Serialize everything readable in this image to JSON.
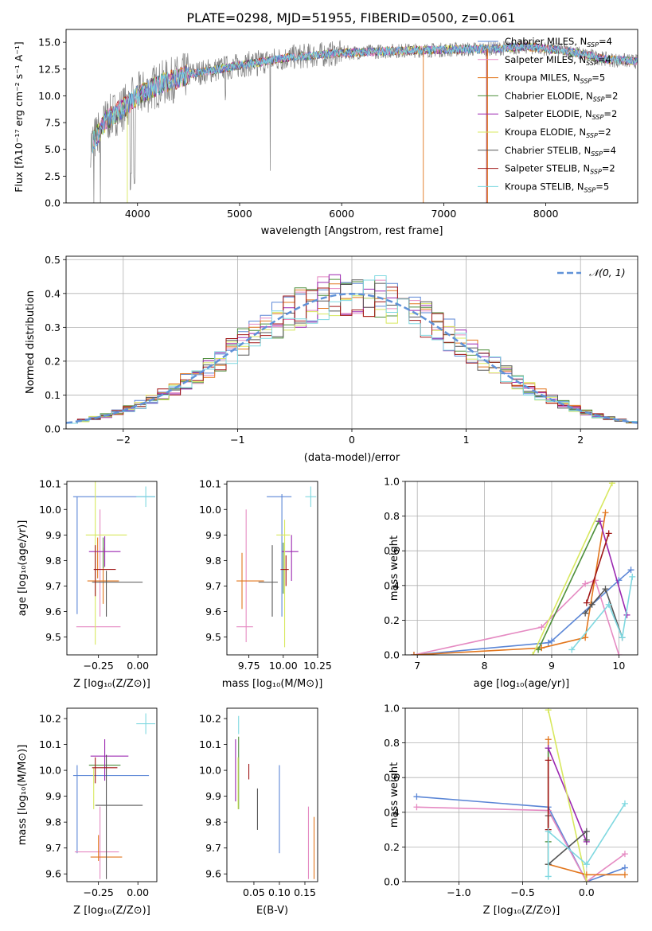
{
  "title": "PLATE=0298, MJD=51955, FIBERID=0500, z=0.061",
  "colors": {
    "Chabrier MILES": "#5b86d6",
    "Salpeter MILES": "#e58ac2",
    "Kroupa MILES": "#e2761d",
    "Chabrier ELODIE": "#4e8f3c",
    "Salpeter ELODIE": "#9b27b0",
    "Kroupa ELODIE": "#d8e85f",
    "Chabrier STELIB": "#555555",
    "Salpeter STELIB": "#a01616",
    "Kroupa STELIB": "#7fd8e0",
    "data": "#808080",
    "normal": "#6092d8"
  },
  "chart_data": [
    {
      "type": "line",
      "id": "spectrum",
      "title": "PLATE=0298, MJD=51955, FIBERID=0500, z=0.061",
      "xlabel": "wavelength [Angstrom, rest frame]",
      "ylabel": "Flux [fλ10⁻¹⁷ erg cm⁻² s⁻¹ A⁻¹]",
      "xlim": [
        3300,
        8900
      ],
      "ylim": [
        0,
        16.2
      ],
      "xticks": [
        4000,
        5000,
        6000,
        7000,
        8000
      ],
      "yticks": [
        0.0,
        2.5,
        5.0,
        7.5,
        10.0,
        12.5,
        15.0
      ],
      "legend_placement": "right",
      "legend": [
        {
          "name": "Chabrier MILES, N",
          "sub": "SSP",
          "suffix": "=4"
        },
        {
          "name": "Salpeter MILES, N",
          "sub": "SSP",
          "suffix": "=4"
        },
        {
          "name": "Kroupa MILES, N",
          "sub": "SSP",
          "suffix": "=5"
        },
        {
          "name": "Chabrier ELODIE, N",
          "sub": "SSP",
          "suffix": "=2"
        },
        {
          "name": "Salpeter ELODIE, N",
          "sub": "SSP",
          "suffix": "=2"
        },
        {
          "name": "Kroupa ELODIE, N",
          "sub": "SSP",
          "suffix": "=2"
        },
        {
          "name": "Chabrier STELIB, N",
          "sub": "SSP",
          "suffix": "=4"
        },
        {
          "name": "Salpeter STELIB, N",
          "sub": "SSP",
          "suffix": "=2"
        },
        {
          "name": "Kroupa STELIB, N",
          "sub": "SSP",
          "suffix": "=5"
        }
      ],
      "continuum": [
        [
          3550,
          5.5
        ],
        [
          3700,
          7.8
        ],
        [
          3850,
          8.8
        ],
        [
          4000,
          10.0
        ],
        [
          4200,
          11.0
        ],
        [
          4500,
          12.0
        ],
        [
          4800,
          12.5
        ],
        [
          5100,
          13.0
        ],
        [
          5500,
          13.6
        ],
        [
          6000,
          14.0
        ],
        [
          6500,
          14.2
        ],
        [
          7000,
          14.3
        ],
        [
          7500,
          14.4
        ],
        [
          7800,
          14.6
        ],
        [
          8200,
          14.2
        ],
        [
          8600,
          13.4
        ],
        [
          8900,
          13.2
        ]
      ]
    },
    {
      "type": "step",
      "id": "residuals",
      "xlabel": "(data-model)/error",
      "ylabel": "Normed distribution",
      "xlim": [
        -2.5,
        2.5
      ],
      "ylim": [
        0,
        0.51
      ],
      "xticks": [
        -2,
        -1,
        0,
        1,
        2
      ],
      "yticks": [
        0.0,
        0.1,
        0.2,
        0.3,
        0.4,
        0.5
      ],
      "bin_width": 0.1,
      "legend": "𝒩(0, 1)",
      "legend_placement": "top-right"
    },
    {
      "type": "errorbar",
      "id": "age-vs-z",
      "xlabel": "Z [log₁₀(Z/Z⊙)]",
      "ylabel": "age  [log₁₀(age/yr)]",
      "xlim": [
        -0.45,
        0.12
      ],
      "ylim": [
        9.43,
        10.11
      ],
      "xticks": [
        -0.25,
        0.0
      ],
      "yticks": [
        9.5,
        9.6,
        9.7,
        9.8,
        9.9,
        10.0,
        10.1
      ],
      "points": [
        {
          "model": "Chabrier MILES",
          "x": -0.15,
          "xerr": 0.26,
          "y": 10.05,
          "yerr": 0.0
        },
        {
          "model": "Chabrier MILES",
          "x": -0.385,
          "xerr": 0.0,
          "y": 9.82,
          "yerr": 0.23
        },
        {
          "model": "Salpeter MILES",
          "x": -0.25,
          "xerr": 0.14,
          "y": 9.54,
          "yerr": 0.0
        },
        {
          "model": "Salpeter MILES",
          "x": -0.24,
          "xerr": 0.0,
          "y": 9.79,
          "yerr": 0.21
        },
        {
          "model": "Kroupa MILES",
          "x": -0.22,
          "xerr": 0.1,
          "y": 9.72,
          "yerr": 0.0
        },
        {
          "model": "Kroupa MILES",
          "x": -0.255,
          "xerr": 0.0,
          "y": 9.81,
          "yerr": 0.08
        },
        {
          "model": "Kroupa MILES",
          "x": -0.22,
          "xerr": 0.0,
          "y": 9.74,
          "yerr": 0.11
        },
        {
          "model": "Chabrier ELODIE",
          "x": -0.22,
          "xerr": 0.0,
          "y": 9.83,
          "yerr": 0.06
        },
        {
          "model": "Salpeter ELODIE",
          "x": -0.21,
          "xerr": 0.1,
          "y": 9.835,
          "yerr": 0.06
        },
        {
          "model": "Kroupa ELODIE",
          "x": -0.2,
          "xerr": 0.13,
          "y": 9.9,
          "yerr": 0.0
        },
        {
          "model": "Kroupa ELODIE",
          "x": -0.27,
          "xerr": 0.0,
          "y": 9.8,
          "yerr": 0.33
        },
        {
          "model": "Chabrier STELIB",
          "x": -0.13,
          "xerr": 0.16,
          "y": 9.715,
          "yerr": 0.0
        },
        {
          "model": "Chabrier STELIB",
          "x": -0.2,
          "xerr": 0.0,
          "y": 9.67,
          "yerr": 0.09
        },
        {
          "model": "Salpeter STELIB",
          "x": -0.21,
          "xerr": 0.07,
          "y": 9.765,
          "yerr": 0.0
        },
        {
          "model": "Salpeter STELIB",
          "x": -0.27,
          "xerr": 0.0,
          "y": 9.76,
          "yerr": 0.1
        },
        {
          "model": "Kroupa STELIB",
          "x": 0.05,
          "xerr": 0.06,
          "y": 10.05,
          "yerr": 0.04
        }
      ]
    },
    {
      "type": "errorbar",
      "id": "age-vs-mass",
      "xlabel": "mass [log₁₀(M/M⊙)]",
      "ylabel": "",
      "xlim": [
        9.59,
        10.25
      ],
      "ylim": [
        9.43,
        10.11
      ],
      "xticks": [
        9.75,
        10.0,
        10.25
      ],
      "yticks": [
        9.5,
        9.6,
        9.7,
        9.8,
        9.9,
        10.0,
        10.1
      ],
      "points": [
        {
          "model": "Chabrier MILES",
          "x": 9.97,
          "xerr": 0.09,
          "y": 10.05,
          "yerr": 0.0
        },
        {
          "model": "Chabrier MILES",
          "x": 9.99,
          "xerr": 0.0,
          "y": 9.82,
          "yerr": 0.24
        },
        {
          "model": "Salpeter MILES",
          "x": 9.72,
          "xerr": 0.06,
          "y": 9.54,
          "yerr": 0.0
        },
        {
          "model": "Salpeter MILES",
          "x": 9.73,
          "xerr": 0.0,
          "y": 9.74,
          "yerr": 0.26
        },
        {
          "model": "Kroupa MILES",
          "x": 9.76,
          "xerr": 0.1,
          "y": 9.72,
          "yerr": 0.0
        },
        {
          "model": "Kroupa MILES",
          "x": 9.7,
          "xerr": 0.0,
          "y": 9.72,
          "yerr": 0.11
        },
        {
          "model": "Chabrier ELODIE",
          "x": 10.0,
          "xerr": 0.0,
          "y": 9.77,
          "yerr": 0.1
        },
        {
          "model": "Salpeter ELODIE",
          "x": 10.05,
          "xerr": 0.06,
          "y": 9.835,
          "yerr": 0.0
        },
        {
          "model": "Salpeter ELODIE",
          "x": 10.06,
          "xerr": 0.0,
          "y": 9.81,
          "yerr": 0.09
        },
        {
          "model": "Kroupa ELODIE",
          "x": 10.0,
          "xerr": 0.05,
          "y": 9.9,
          "yerr": 0.0
        },
        {
          "model": "Kroupa ELODIE",
          "x": 10.01,
          "xerr": 0.0,
          "y": 9.71,
          "yerr": 0.25
        },
        {
          "model": "Chabrier STELIB",
          "x": 9.89,
          "xerr": 0.07,
          "y": 9.715,
          "yerr": 0.0
        },
        {
          "model": "Chabrier STELIB",
          "x": 9.92,
          "xerr": 0.0,
          "y": 9.72,
          "yerr": 0.14
        },
        {
          "model": "Salpeter STELIB",
          "x": 10.01,
          "xerr": 0.03,
          "y": 9.765,
          "yerr": 0.0
        },
        {
          "model": "Salpeter STELIB",
          "x": 10.02,
          "xerr": 0.0,
          "y": 9.76,
          "yerr": 0.06
        },
        {
          "model": "Kroupa STELIB",
          "x": 10.2,
          "xerr": 0.04,
          "y": 10.05,
          "yerr": 0.04
        }
      ]
    },
    {
      "type": "line",
      "id": "mass-weight-vs-age",
      "xlabel": "age  [log₁₀(age/yr)]",
      "ylabel": "mass weight",
      "xlim": [
        6.82,
        10.28
      ],
      "ylim": [
        0,
        1.0
      ],
      "xticks": [
        7,
        8,
        9,
        10
      ],
      "yticks": [
        0.0,
        0.2,
        0.4,
        0.6,
        0.8,
        1.0
      ],
      "series": [
        {
          "model": "Chabrier MILES",
          "x": [
            6.95,
            8.95,
            9.0,
            10.0,
            10.18
          ],
          "y": [
            0.0,
            0.07,
            0.08,
            0.43,
            0.49
          ]
        },
        {
          "model": "Salpeter MILES",
          "x": [
            6.95,
            8.85,
            9.5,
            9.65,
            10.0
          ],
          "y": [
            0.0,
            0.16,
            0.41,
            0.43,
            0.0
          ]
        },
        {
          "model": "Kroupa MILES",
          "x": [
            6.95,
            8.85,
            9.5,
            9.8
          ],
          "y": [
            0.0,
            0.04,
            0.1,
            0.82
          ]
        },
        {
          "model": "Chabrier ELODIE",
          "x": [
            8.8,
            9.7
          ],
          "y": [
            0.03,
            0.77
          ]
        },
        {
          "model": "Salpeter ELODIE",
          "x": [
            9.72,
            10.12
          ],
          "y": [
            0.77,
            0.23
          ]
        },
        {
          "model": "Kroupa ELODIE",
          "x": [
            8.72,
            9.9
          ],
          "y": [
            0.0,
            0.99
          ]
        },
        {
          "model": "Chabrier STELIB",
          "x": [
            9.5,
            9.6,
            9.8,
            10.05
          ],
          "y": [
            0.24,
            0.29,
            0.38,
            0.1
          ]
        },
        {
          "model": "Salpeter STELIB",
          "x": [
            9.52,
            9.85
          ],
          "y": [
            0.3,
            0.7
          ]
        },
        {
          "model": "Kroupa STELIB",
          "x": [
            9.3,
            9.85,
            10.05,
            10.2
          ],
          "y": [
            0.03,
            0.29,
            0.1,
            0.45
          ]
        }
      ]
    },
    {
      "type": "errorbar",
      "id": "mass-vs-z",
      "xlabel": "Z [log₁₀(Z/Z⊙)]",
      "ylabel": "mass [log₁₀(M/M⊙)]",
      "xlim": [
        -0.45,
        0.12
      ],
      "ylim": [
        9.57,
        10.24
      ],
      "xticks": [
        -0.25,
        0.0
      ],
      "yticks": [
        9.6,
        9.7,
        9.8,
        9.9,
        10.0,
        10.1,
        10.2
      ],
      "points": [
        {
          "model": "Chabrier MILES",
          "x": -0.17,
          "xerr": 0.24,
          "y": 9.98,
          "yerr": 0.0
        },
        {
          "model": "Chabrier MILES",
          "x": -0.385,
          "xerr": 0.0,
          "y": 9.85,
          "yerr": 0.17
        },
        {
          "model": "Salpeter MILES",
          "x": -0.26,
          "xerr": 0.14,
          "y": 9.685,
          "yerr": 0.0
        },
        {
          "model": "Salpeter MILES",
          "x": -0.24,
          "xerr": 0.0,
          "y": 9.72,
          "yerr": 0.14
        },
        {
          "model": "Kroupa MILES",
          "x": -0.2,
          "xerr": 0.1,
          "y": 9.665,
          "yerr": 0.0
        },
        {
          "model": "Kroupa MILES",
          "x": -0.25,
          "xerr": 0.0,
          "y": 9.7,
          "yerr": 0.05
        },
        {
          "model": "Chabrier ELODIE",
          "x": -0.21,
          "xerr": 0.1,
          "y": 10.02,
          "yerr": 0.0
        },
        {
          "model": "Salpeter ELODIE",
          "x": -0.18,
          "xerr": 0.12,
          "y": 10.055,
          "yerr": 0.0
        },
        {
          "model": "Salpeter ELODIE",
          "x": -0.21,
          "xerr": 0.0,
          "y": 10.04,
          "yerr": 0.08
        },
        {
          "model": "Kroupa ELODIE",
          "x": -0.28,
          "xerr": 0.0,
          "y": 9.93,
          "yerr": 0.08
        },
        {
          "model": "Chabrier STELIB",
          "x": -0.12,
          "xerr": 0.15,
          "y": 9.865,
          "yerr": 0.0
        },
        {
          "model": "Chabrier STELIB",
          "x": -0.2,
          "xerr": 0.0,
          "y": 9.82,
          "yerr": 0.24
        },
        {
          "model": "Salpeter STELIB",
          "x": -0.21,
          "xerr": 0.08,
          "y": 10.01,
          "yerr": 0.0
        },
        {
          "model": "Salpeter STELIB",
          "x": -0.27,
          "xerr": 0.0,
          "y": 10.0,
          "yerr": 0.05
        },
        {
          "model": "Kroupa STELIB",
          "x": 0.05,
          "xerr": 0.06,
          "y": 10.18,
          "yerr": 0.04
        }
      ]
    },
    {
      "type": "errorbar",
      "id": "mass-vs-ebv",
      "xlabel": "E(B-V)",
      "ylabel": "",
      "xlim": [
        -0.003,
        0.175
      ],
      "ylim": [
        9.57,
        10.24
      ],
      "xticks": [
        0.05,
        0.1,
        0.15
      ],
      "yticks": [
        9.6,
        9.7,
        9.8,
        9.9,
        10.0,
        10.1,
        10.2
      ],
      "points": [
        {
          "model": "Chabrier MILES",
          "x": 0.1,
          "xerr": 0.0,
          "y": 9.85,
          "yerr": 0.17
        },
        {
          "model": "Salpeter MILES",
          "x": 0.157,
          "xerr": 0.0,
          "y": 9.72,
          "yerr": 0.14
        },
        {
          "model": "Kroupa MILES",
          "x": 0.168,
          "xerr": 0.0,
          "y": 9.7,
          "yerr": 0.12
        },
        {
          "model": "Chabrier ELODIE",
          "x": 0.02,
          "xerr": 0.0,
          "y": 9.99,
          "yerr": 0.14
        },
        {
          "model": "Salpeter ELODIE",
          "x": 0.014,
          "xerr": 0.0,
          "y": 10.0,
          "yerr": 0.12
        },
        {
          "model": "Kroupa ELODIE",
          "x": 0.019,
          "xerr": 0.0,
          "y": 9.95,
          "yerr": 0.1
        },
        {
          "model": "Chabrier STELIB",
          "x": 0.057,
          "xerr": 0.0,
          "y": 9.85,
          "yerr": 0.08
        },
        {
          "model": "Salpeter STELIB",
          "x": 0.04,
          "xerr": 0.0,
          "y": 9.995,
          "yerr": 0.03
        },
        {
          "model": "Kroupa STELIB",
          "x": 0.02,
          "xerr": 0.0,
          "y": 10.175,
          "yerr": 0.035
        }
      ]
    },
    {
      "type": "line",
      "id": "mass-weight-vs-z",
      "xlabel": "Z [log₁₀(Z/Z⊙)]",
      "ylabel": "mass weight",
      "xlim": [
        -1.42,
        0.4
      ],
      "ylim": [
        0,
        1.0
      ],
      "xticks": [
        -1.0,
        -0.5,
        0.0
      ],
      "yticks": [
        0.0,
        0.2,
        0.4,
        0.6,
        0.8,
        1.0
      ],
      "series": [
        {
          "model": "Chabrier MILES",
          "x": [
            -1.33,
            -0.3,
            0.0,
            0.3
          ],
          "y": [
            0.49,
            0.43,
            0.0,
            0.08
          ]
        },
        {
          "model": "Salpeter MILES",
          "x": [
            -1.33,
            -0.3,
            0.0,
            0.3
          ],
          "y": [
            0.43,
            0.41,
            0.0,
            0.16
          ]
        },
        {
          "model": "Kroupa MILES",
          "x": [
            -0.3,
            -0.3,
            0.0,
            0.3
          ],
          "y": [
            0.82,
            0.1,
            0.04,
            0.04
          ]
        },
        {
          "model": "Chabrier ELODIE",
          "x": [
            -0.3,
            -0.3
          ],
          "y": [
            0.77,
            0.23
          ]
        },
        {
          "model": "Salpeter ELODIE",
          "x": [
            -0.3,
            0.0
          ],
          "y": [
            0.77,
            0.23
          ]
        },
        {
          "model": "Kroupa ELODIE",
          "x": [
            -0.3,
            0.0
          ],
          "y": [
            0.99,
            0.0
          ]
        },
        {
          "model": "Chabrier STELIB",
          "x": [
            -0.3,
            -0.3,
            0.0,
            0.0
          ],
          "y": [
            0.38,
            0.1,
            0.29,
            0.24
          ]
        },
        {
          "model": "Salpeter STELIB",
          "x": [
            -0.3,
            -0.3
          ],
          "y": [
            0.7,
            0.3
          ]
        },
        {
          "model": "Kroupa STELIB",
          "x": [
            -0.3,
            -0.3,
            0.0,
            0.3
          ],
          "y": [
            0.03,
            0.29,
            0.1,
            0.45
          ]
        }
      ]
    }
  ]
}
